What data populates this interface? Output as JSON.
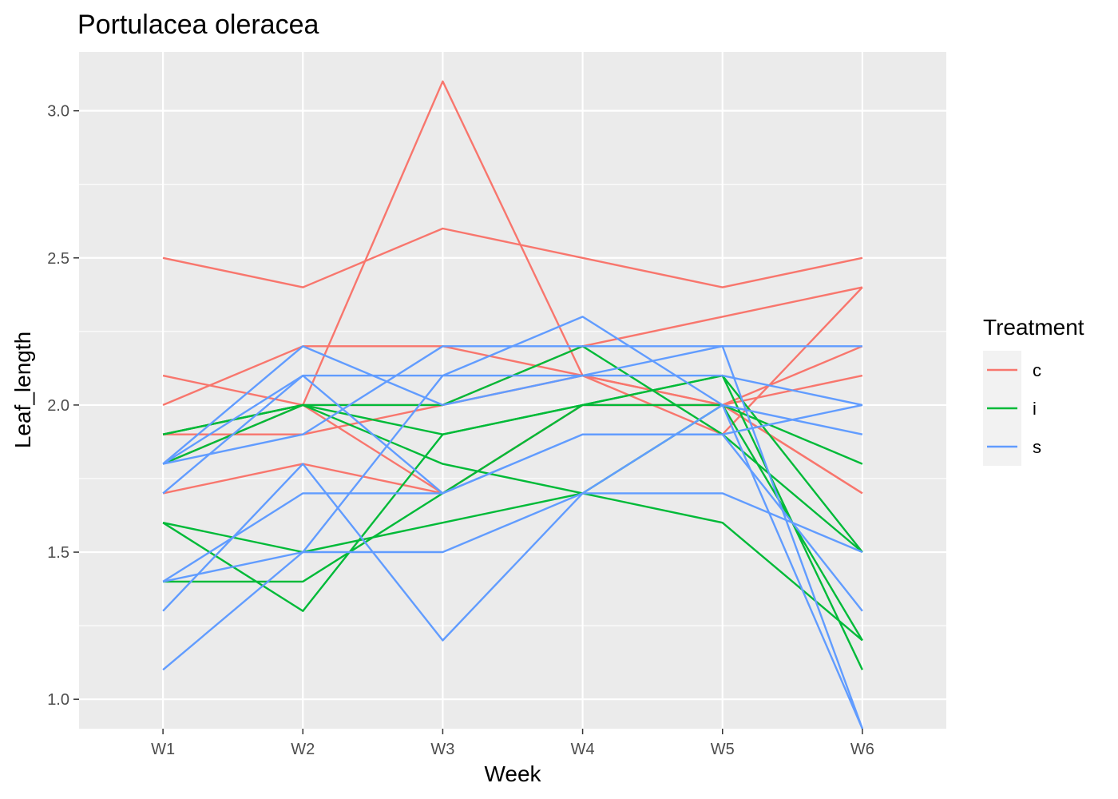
{
  "chart_data": {
    "type": "line",
    "title": "Portulacea oleracea",
    "xlabel": "Week",
    "ylabel": "Leaf_length",
    "categories": [
      "W1",
      "W2",
      "W3",
      "W4",
      "W5",
      "W6"
    ],
    "ylim": [
      0.9,
      3.2
    ],
    "yticks": [
      1.0,
      1.5,
      2.0,
      2.5,
      3.0
    ],
    "ytick_labels": [
      "1.0",
      "1.5",
      "2.0",
      "2.5",
      "3.0"
    ],
    "grid": true,
    "legend": {
      "title": "Treatment",
      "placement": "right",
      "entries": [
        {
          "label": "c",
          "color": "#F8766D"
        },
        {
          "label": "i",
          "color": "#00BA38"
        },
        {
          "label": "s",
          "color": "#619CFF"
        }
      ]
    },
    "series": [
      {
        "group": "c",
        "values": [
          2.5,
          2.4,
          2.6,
          2.5,
          2.4,
          2.5
        ]
      },
      {
        "group": "c",
        "values": [
          1.9,
          1.9,
          2.0,
          2.2,
          2.3,
          2.4
        ]
      },
      {
        "group": "c",
        "values": [
          2.1,
          2.0,
          2.0,
          2.1,
          2.0,
          1.7
        ]
      },
      {
        "group": "c",
        "values": [
          1.7,
          1.8,
          1.7,
          2.0,
          2.0,
          1.7
        ]
      },
      {
        "group": "c",
        "values": [
          2.0,
          2.2,
          2.2,
          2.1,
          2.0,
          2.1
        ]
      },
      {
        "group": "c",
        "values": [
          1.9,
          2.0,
          3.1,
          2.1,
          1.9,
          2.4
        ]
      },
      {
        "group": "c",
        "values": [
          1.8,
          2.0,
          1.7,
          2.0,
          2.0,
          2.2
        ]
      },
      {
        "group": "i",
        "values": [
          1.9,
          2.0,
          2.0,
          2.2,
          1.9,
          1.5
        ]
      },
      {
        "group": "i",
        "values": [
          1.8,
          2.0,
          1.9,
          2.0,
          2.1,
          1.1
        ]
      },
      {
        "group": "i",
        "values": [
          1.6,
          1.5,
          1.6,
          1.7,
          2.0,
          1.2
        ]
      },
      {
        "group": "i",
        "values": [
          1.4,
          1.4,
          1.7,
          2.0,
          2.1,
          1.5
        ]
      },
      {
        "group": "i",
        "values": [
          1.6,
          1.3,
          1.9,
          2.0,
          2.0,
          1.8
        ]
      },
      {
        "group": "i",
        "values": [
          1.9,
          2.0,
          1.8,
          1.7,
          1.6,
          1.2
        ]
      },
      {
        "group": "s",
        "values": [
          1.8,
          2.2,
          2.0,
          2.1,
          2.2,
          0.9
        ]
      },
      {
        "group": "s",
        "values": [
          1.7,
          2.1,
          2.1,
          2.1,
          2.1,
          2.0
        ]
      },
      {
        "group": "s",
        "values": [
          1.4,
          1.7,
          1.7,
          1.9,
          1.9,
          1.3
        ]
      },
      {
        "group": "s",
        "values": [
          1.1,
          1.5,
          1.5,
          1.7,
          1.7,
          1.5
        ]
      },
      {
        "group": "s",
        "values": [
          1.3,
          1.8,
          1.2,
          1.7,
          2.0,
          0.9
        ]
      },
      {
        "group": "s",
        "values": [
          1.8,
          1.9,
          2.2,
          2.2,
          2.2,
          2.2
        ]
      },
      {
        "group": "s",
        "values": [
          1.4,
          1.5,
          2.1,
          2.3,
          2.0,
          1.9
        ]
      },
      {
        "group": "s",
        "values": [
          1.8,
          2.1,
          1.7,
          1.9,
          1.9,
          2.0
        ]
      }
    ]
  }
}
